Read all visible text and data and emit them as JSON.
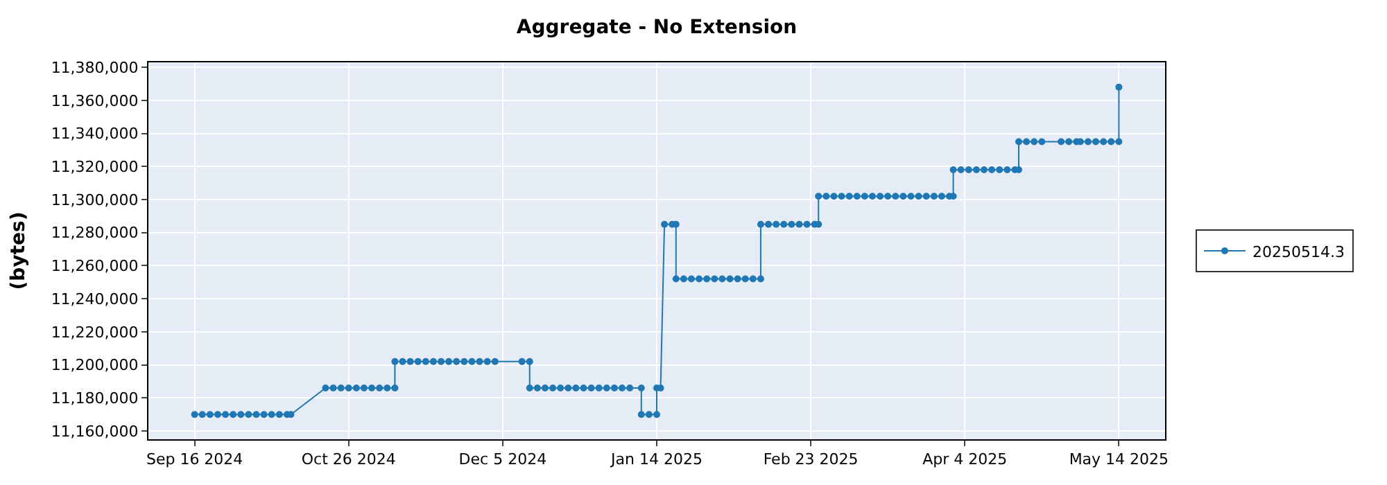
{
  "chart_data": {
    "type": "line",
    "title": "Aggregate - No Extension",
    "ylabel": "(bytes)",
    "xlim": [
      "2024-09-04",
      "2025-05-26"
    ],
    "xticks": [
      {
        "value": "2024-09-16",
        "label": "Sep 16 2024"
      },
      {
        "value": "2024-10-26",
        "label": "Oct 26 2024"
      },
      {
        "value": "2024-12-05",
        "label": "Dec 5 2024"
      },
      {
        "value": "2025-01-14",
        "label": "Jan 14 2025"
      },
      {
        "value": "2025-02-23",
        "label": "Feb 23 2025"
      },
      {
        "value": "2025-04-04",
        "label": "Apr 4 2025"
      },
      {
        "value": "2025-05-14",
        "label": "May 14 2025"
      }
    ],
    "ylim": [
      11155000,
      11383000
    ],
    "yticks": [
      {
        "value": 11160000,
        "label": "11,160,000"
      },
      {
        "value": 11180000,
        "label": "11,180,000"
      },
      {
        "value": 11200000,
        "label": "11,200,000"
      },
      {
        "value": 11220000,
        "label": "11,220,000"
      },
      {
        "value": 11240000,
        "label": "11,240,000"
      },
      {
        "value": 11260000,
        "label": "11,260,000"
      },
      {
        "value": 11280000,
        "label": "11,280,000"
      },
      {
        "value": 11300000,
        "label": "11,300,000"
      },
      {
        "value": 11320000,
        "label": "11,320,000"
      },
      {
        "value": 11340000,
        "label": "11,340,000"
      },
      {
        "value": 11360000,
        "label": "11,360,000"
      },
      {
        "value": 11380000,
        "label": "11,380,000"
      }
    ],
    "grid": true,
    "legend": "right",
    "marker": "circle",
    "line_style": "solid",
    "series": [
      {
        "name": "20250514.3",
        "color": "#1f77b4",
        "x": [
          "2024-09-16",
          "2024-09-18",
          "2024-09-20",
          "2024-09-22",
          "2024-09-24",
          "2024-09-26",
          "2024-09-28",
          "2024-09-30",
          "2024-10-02",
          "2024-10-04",
          "2024-10-06",
          "2024-10-08",
          "2024-10-10",
          "2024-10-11",
          "2024-10-20",
          "2024-10-22",
          "2024-10-24",
          "2024-10-26",
          "2024-10-28",
          "2024-10-30",
          "2024-11-01",
          "2024-11-03",
          "2024-11-05",
          "2024-11-07",
          "2024-11-07",
          "2024-11-09",
          "2024-11-11",
          "2024-11-13",
          "2024-11-15",
          "2024-11-17",
          "2024-11-19",
          "2024-11-21",
          "2024-11-23",
          "2024-11-25",
          "2024-11-27",
          "2024-11-29",
          "2024-12-01",
          "2024-12-03",
          "2024-12-10",
          "2024-12-12",
          "2024-12-12",
          "2024-12-14",
          "2024-12-16",
          "2024-12-18",
          "2024-12-20",
          "2024-12-22",
          "2024-12-24",
          "2024-12-26",
          "2024-12-28",
          "2024-12-30",
          "2025-01-01",
          "2025-01-03",
          "2025-01-05",
          "2025-01-07",
          "2025-01-10",
          "2025-01-10",
          "2025-01-12",
          "2025-01-14",
          "2025-01-14",
          "2025-01-15",
          "2025-01-16",
          "2025-01-18",
          "2025-01-19",
          "2025-01-19",
          "2025-01-21",
          "2025-01-23",
          "2025-01-25",
          "2025-01-27",
          "2025-01-29",
          "2025-01-31",
          "2025-02-02",
          "2025-02-04",
          "2025-02-06",
          "2025-02-08",
          "2025-02-10",
          "2025-02-10",
          "2025-02-12",
          "2025-02-14",
          "2025-02-16",
          "2025-02-18",
          "2025-02-20",
          "2025-02-22",
          "2025-02-24",
          "2025-02-25",
          "2025-02-25",
          "2025-02-27",
          "2025-03-01",
          "2025-03-03",
          "2025-03-05",
          "2025-03-07",
          "2025-03-09",
          "2025-03-11",
          "2025-03-13",
          "2025-03-15",
          "2025-03-17",
          "2025-03-19",
          "2025-03-21",
          "2025-03-23",
          "2025-03-25",
          "2025-03-27",
          "2025-03-29",
          "2025-03-31",
          "2025-04-01",
          "2025-04-01",
          "2025-04-03",
          "2025-04-05",
          "2025-04-07",
          "2025-04-09",
          "2025-04-11",
          "2025-04-13",
          "2025-04-15",
          "2025-04-17",
          "2025-04-18",
          "2025-04-18",
          "2025-04-20",
          "2025-04-22",
          "2025-04-24",
          "2025-04-29",
          "2025-05-01",
          "2025-05-03",
          "2025-05-04",
          "2025-05-06",
          "2025-05-08",
          "2025-05-10",
          "2025-05-12",
          "2025-05-14",
          "2025-05-14"
        ],
        "values": [
          11170000,
          11170000,
          11170000,
          11170000,
          11170000,
          11170000,
          11170000,
          11170000,
          11170000,
          11170000,
          11170000,
          11170000,
          11170000,
          11170000,
          11186000,
          11186000,
          11186000,
          11186000,
          11186000,
          11186000,
          11186000,
          11186000,
          11186000,
          11186000,
          11202000,
          11202000,
          11202000,
          11202000,
          11202000,
          11202000,
          11202000,
          11202000,
          11202000,
          11202000,
          11202000,
          11202000,
          11202000,
          11202000,
          11202000,
          11202000,
          11186000,
          11186000,
          11186000,
          11186000,
          11186000,
          11186000,
          11186000,
          11186000,
          11186000,
          11186000,
          11186000,
          11186000,
          11186000,
          11186000,
          11186000,
          11170000,
          11170000,
          11170000,
          11186000,
          11186000,
          11285000,
          11285000,
          11285000,
          11252000,
          11252000,
          11252000,
          11252000,
          11252000,
          11252000,
          11252000,
          11252000,
          11252000,
          11252000,
          11252000,
          11252000,
          11285000,
          11285000,
          11285000,
          11285000,
          11285000,
          11285000,
          11285000,
          11285000,
          11285000,
          11302000,
          11302000,
          11302000,
          11302000,
          11302000,
          11302000,
          11302000,
          11302000,
          11302000,
          11302000,
          11302000,
          11302000,
          11302000,
          11302000,
          11302000,
          11302000,
          11302000,
          11302000,
          11302000,
          11318000,
          11318000,
          11318000,
          11318000,
          11318000,
          11318000,
          11318000,
          11318000,
          11318000,
          11318000,
          11335000,
          11335000,
          11335000,
          11335000,
          11335000,
          11335000,
          11335000,
          11335000,
          11335000,
          11335000,
          11335000,
          11335000,
          11335000,
          11368000
        ]
      }
    ]
  }
}
